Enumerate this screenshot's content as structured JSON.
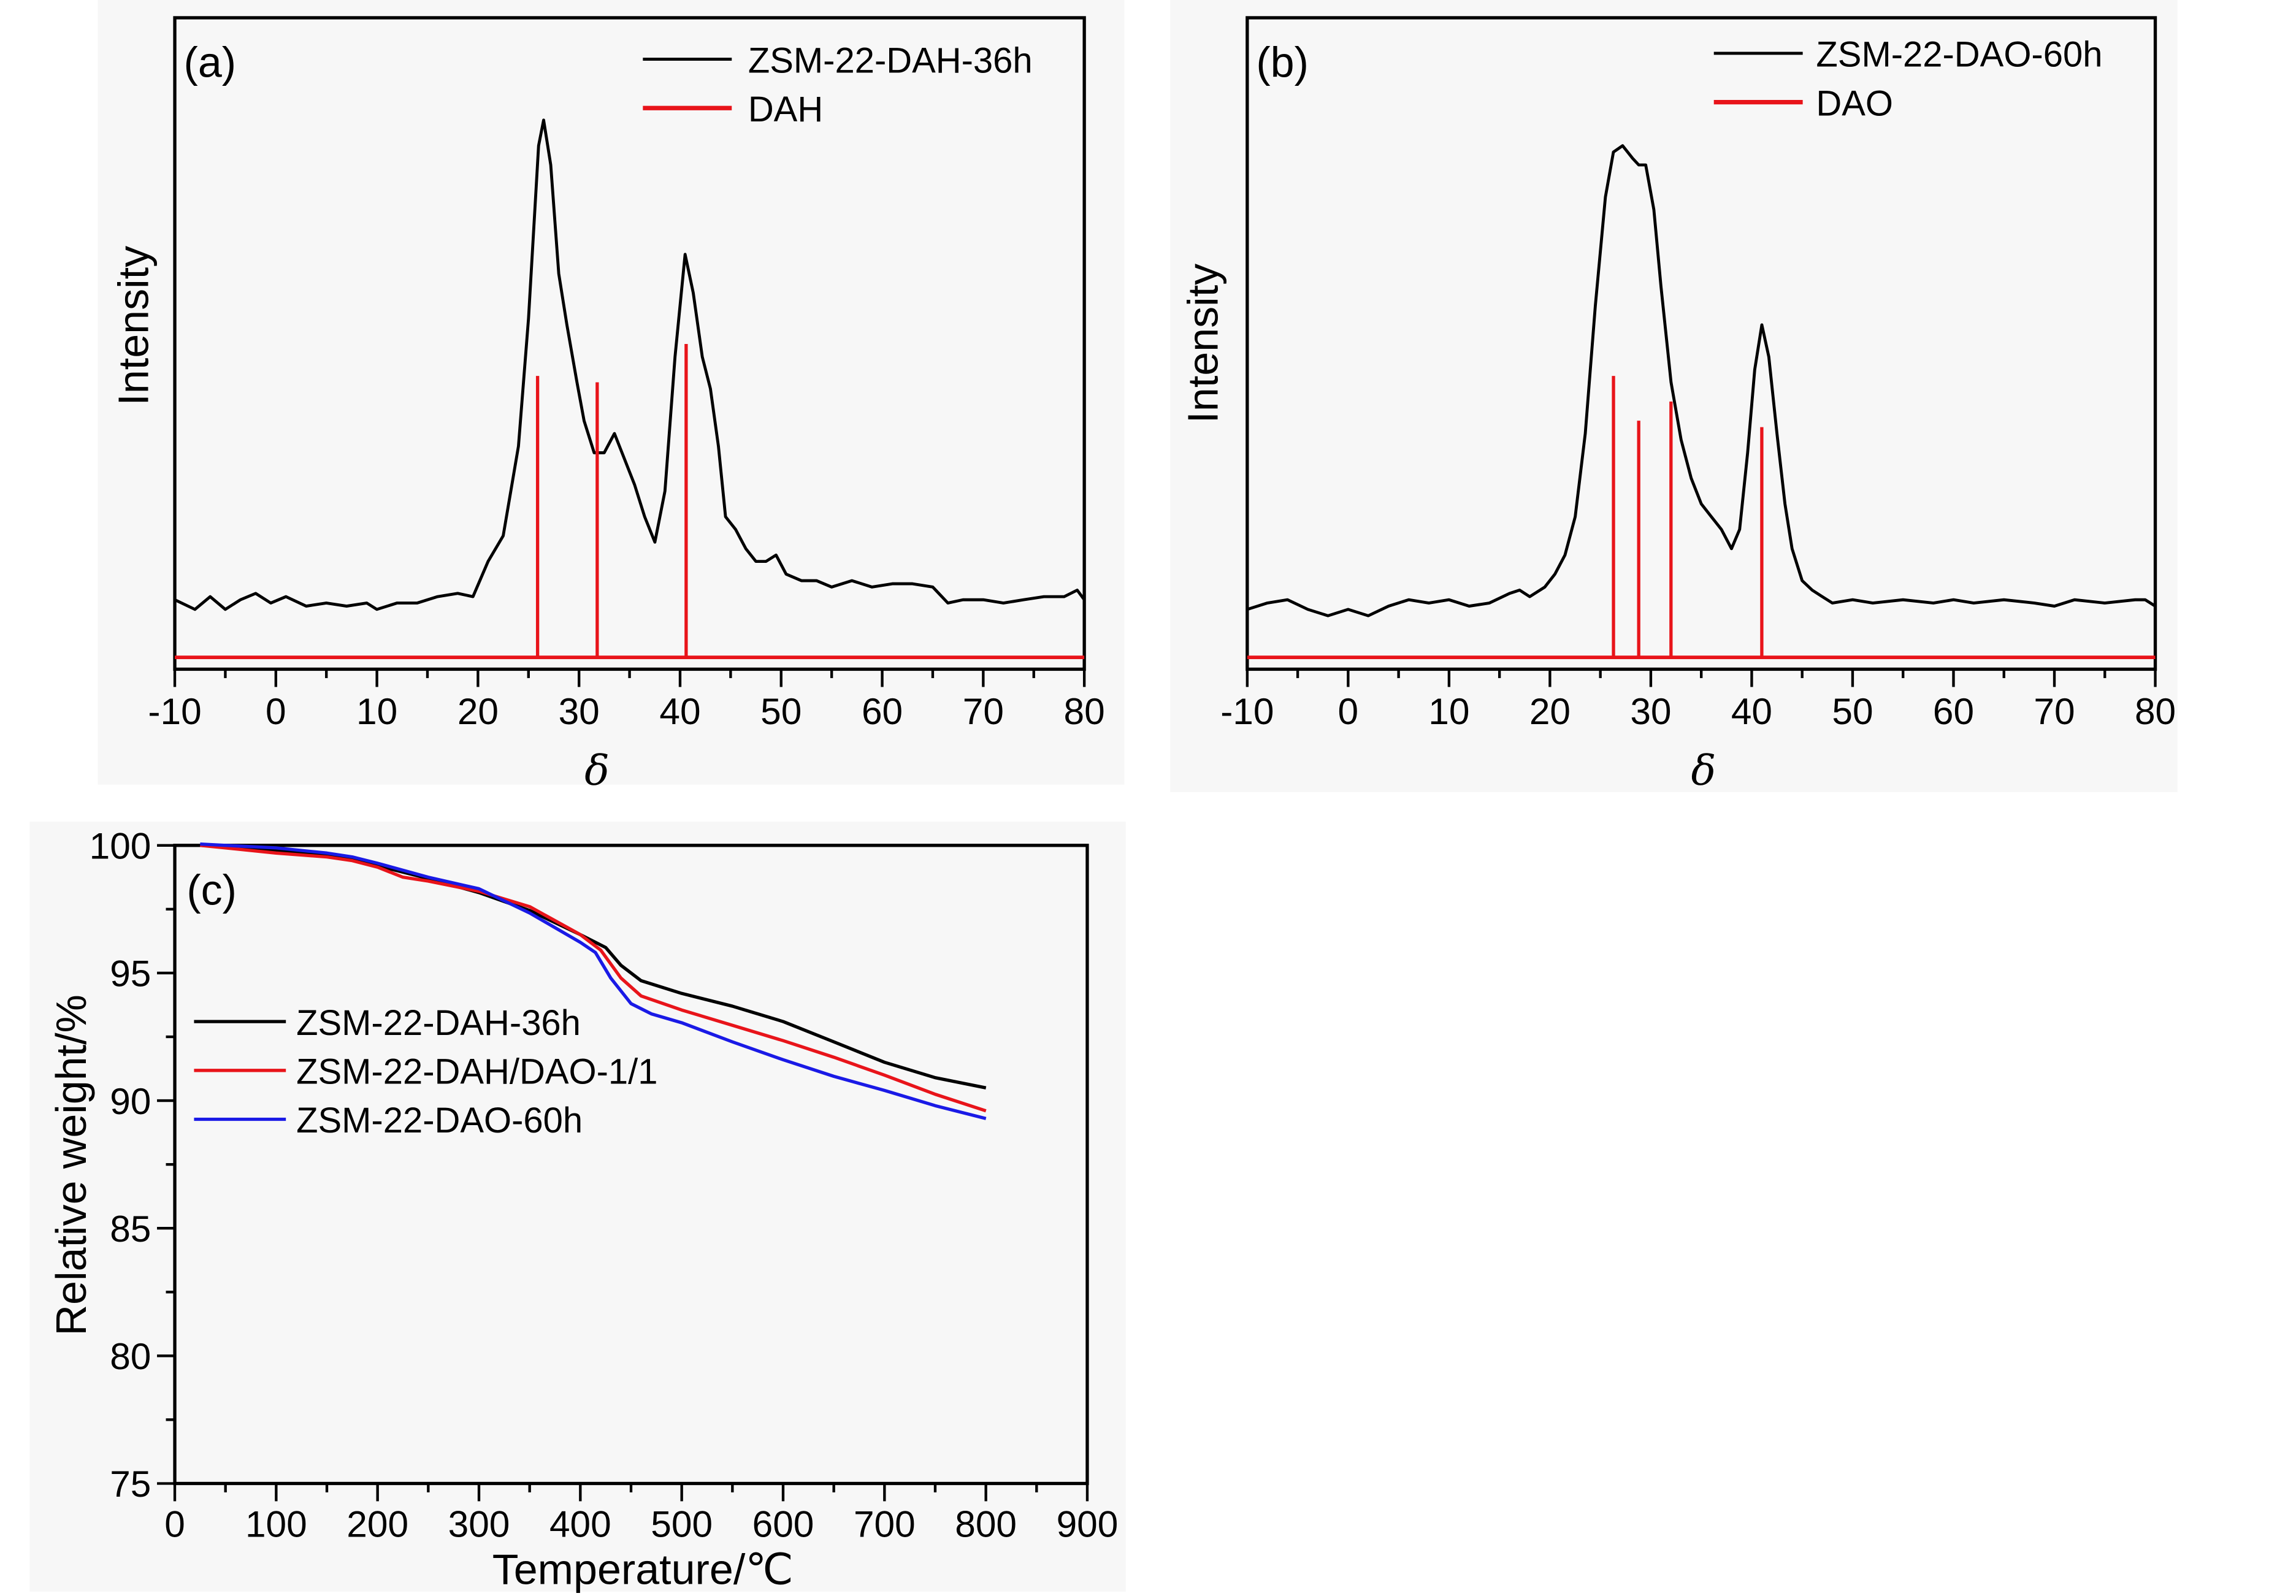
{
  "figure": {
    "panels": [
      "(a)",
      "(b)",
      "(c)"
    ]
  },
  "chart_data": [
    {
      "id": "a",
      "type": "line",
      "panel_label": "(a)",
      "title": "",
      "xlabel": "δ",
      "ylabel": "Intensity",
      "xlim": [
        -10,
        80
      ],
      "ylim": [
        0,
        1
      ],
      "y_units": "normalized intensity (a.u.), no tick labels",
      "xticks": [
        -10,
        0,
        10,
        20,
        30,
        40,
        50,
        60,
        70,
        80
      ],
      "xticks_labels": [
        "-10",
        "0",
        "10",
        "20",
        "30",
        "40",
        "50",
        "60",
        "70",
        "80"
      ],
      "legend_position": "top-right",
      "grid": false,
      "series": [
        {
          "name": "ZSM-22-DAH-36h",
          "color": "#000000",
          "style": "line",
          "x": [
            -10,
            -8,
            -6.5,
            -5,
            -3.5,
            -2,
            -0.5,
            1,
            3,
            5,
            7,
            9,
            10,
            12,
            14,
            16,
            18,
            19.5,
            21,
            22.5,
            24,
            25,
            26,
            26.5,
            27.2,
            28,
            28.8,
            29.8,
            30.5,
            31.5,
            32.5,
            33.5,
            34.5,
            35.5,
            36.5,
            37.5,
            38.5,
            39.5,
            40.5,
            41.3,
            42.2,
            43,
            43.8,
            44.5,
            45.5,
            46.5,
            47.5,
            48.5,
            49.5,
            50.5,
            52,
            53.5,
            55,
            57,
            59,
            61,
            63,
            65,
            66.5,
            68,
            70,
            72,
            74,
            76,
            78,
            79.3,
            80
          ],
          "y": [
            0.09,
            0.075,
            0.095,
            0.075,
            0.09,
            0.1,
            0.085,
            0.095,
            0.08,
            0.085,
            0.08,
            0.085,
            0.075,
            0.085,
            0.085,
            0.095,
            0.1,
            0.095,
            0.15,
            0.19,
            0.33,
            0.53,
            0.8,
            0.84,
            0.77,
            0.6,
            0.52,
            0.43,
            0.37,
            0.32,
            0.32,
            0.35,
            0.31,
            0.27,
            0.22,
            0.18,
            0.26,
            0.47,
            0.63,
            0.57,
            0.47,
            0.42,
            0.33,
            0.22,
            0.2,
            0.17,
            0.15,
            0.15,
            0.16,
            0.13,
            0.12,
            0.12,
            0.11,
            0.12,
            0.11,
            0.115,
            0.115,
            0.11,
            0.085,
            0.09,
            0.09,
            0.085,
            0.09,
            0.095,
            0.095,
            0.105,
            0.09
          ]
        },
        {
          "name": "DAH",
          "color": "#e8141a",
          "style": "sticks",
          "baseline": 0.0,
          "x": [
            25.9,
            31.8,
            40.6
          ],
          "y": [
            0.44,
            0.43,
            0.49
          ]
        }
      ]
    },
    {
      "id": "b",
      "type": "line",
      "panel_label": "(b)",
      "title": "",
      "xlabel": "δ",
      "ylabel": "Intensity",
      "xlim": [
        -10,
        80
      ],
      "ylim": [
        0,
        1
      ],
      "y_units": "normalized intensity (a.u.), no tick labels",
      "xticks": [
        -10,
        0,
        10,
        20,
        30,
        40,
        50,
        60,
        70,
        80
      ],
      "xticks_labels": [
        "-10",
        "0",
        "10",
        "20",
        "30",
        "40",
        "50",
        "60",
        "70",
        "80"
      ],
      "legend_position": "top-right",
      "grid": false,
      "series": [
        {
          "name": "ZSM-22-DAO-60h",
          "color": "#000000",
          "style": "line",
          "x": [
            -10,
            -8,
            -6,
            -4,
            -2,
            0,
            2,
            4,
            6,
            8,
            10,
            12,
            14,
            16,
            17,
            18,
            19.5,
            20.5,
            21.5,
            22.5,
            23.5,
            24.5,
            25.5,
            26.3,
            27.2,
            28.2,
            28.8,
            29.5,
            30.3,
            31,
            32,
            33,
            34,
            35,
            36,
            37,
            38,
            38.8,
            39.6,
            40.3,
            41,
            41.7,
            42.5,
            43.3,
            44,
            45,
            46,
            47,
            48,
            50,
            52,
            55,
            58,
            60,
            62,
            65,
            68,
            70,
            72,
            75,
            78,
            79,
            80
          ],
          "y": [
            0.075,
            0.085,
            0.09,
            0.075,
            0.065,
            0.075,
            0.065,
            0.08,
            0.09,
            0.085,
            0.09,
            0.08,
            0.085,
            0.1,
            0.105,
            0.095,
            0.11,
            0.13,
            0.16,
            0.22,
            0.35,
            0.55,
            0.72,
            0.79,
            0.8,
            0.78,
            0.77,
            0.77,
            0.7,
            0.58,
            0.43,
            0.34,
            0.28,
            0.24,
            0.22,
            0.2,
            0.17,
            0.2,
            0.32,
            0.45,
            0.52,
            0.47,
            0.35,
            0.24,
            0.17,
            0.12,
            0.105,
            0.095,
            0.085,
            0.09,
            0.085,
            0.09,
            0.085,
            0.09,
            0.085,
            0.09,
            0.085,
            0.08,
            0.09,
            0.085,
            0.09,
            0.09,
            0.08
          ]
        },
        {
          "name": "DAO",
          "color": "#e8141a",
          "style": "sticks",
          "baseline": 0.0,
          "x": [
            26.3,
            28.8,
            32.0,
            41.0
          ],
          "y": [
            0.44,
            0.37,
            0.4,
            0.36
          ]
        }
      ]
    },
    {
      "id": "c",
      "type": "line",
      "panel_label": "(c)",
      "title": "",
      "xlabel": "Temperature/℃",
      "ylabel": "Relative weight/%",
      "xlim": [
        0,
        900
      ],
      "ylim": [
        75,
        100
      ],
      "xticks": [
        0,
        100,
        200,
        300,
        400,
        500,
        600,
        700,
        800,
        900
      ],
      "xticks_labels": [
        "0",
        "100",
        "200",
        "300",
        "400",
        "500",
        "600",
        "700",
        "800",
        "900"
      ],
      "yticks": [
        75,
        80,
        85,
        90,
        95,
        100
      ],
      "yticks_labels": [
        "75",
        "80",
        "85",
        "90",
        "95",
        "100"
      ],
      "legend_position": "center-left",
      "grid": false,
      "series": [
        {
          "name": "ZSM-22-DAH-36h",
          "color": "#000000",
          "x": [
            25,
            50,
            100,
            150,
            175,
            200,
            250,
            300,
            350,
            400,
            425,
            440,
            460,
            500,
            550,
            600,
            650,
            700,
            750,
            800
          ],
          "y": [
            100.0,
            99.95,
            99.8,
            99.6,
            99.5,
            99.2,
            98.7,
            98.15,
            97.45,
            96.5,
            96.0,
            95.3,
            94.7,
            94.2,
            93.7,
            93.1,
            92.3,
            91.5,
            90.9,
            90.5
          ]
        },
        {
          "name": "ZSM-22-DAH/DAO-1/1",
          "color": "#e8141a",
          "x": [
            25,
            50,
            100,
            150,
            175,
            200,
            225,
            250,
            300,
            350,
            400,
            420,
            440,
            460,
            500,
            550,
            600,
            650,
            700,
            750,
            800
          ],
          "y": [
            100.0,
            99.9,
            99.7,
            99.55,
            99.4,
            99.15,
            98.75,
            98.6,
            98.2,
            97.6,
            96.5,
            95.9,
            94.8,
            94.1,
            93.55,
            92.95,
            92.35,
            91.7,
            91.0,
            90.25,
            89.6
          ]
        },
        {
          "name": "ZSM-22-DAO-60h",
          "color": "#1a1ae6",
          "x": [
            25,
            50,
            100,
            150,
            175,
            200,
            250,
            300,
            350,
            400,
            415,
            430,
            450,
            470,
            500,
            550,
            600,
            650,
            700,
            750,
            800
          ],
          "y": [
            100.05,
            100.0,
            99.9,
            99.7,
            99.55,
            99.3,
            98.75,
            98.3,
            97.35,
            96.2,
            95.8,
            94.8,
            93.8,
            93.4,
            93.05,
            92.3,
            91.6,
            90.95,
            90.4,
            89.8,
            89.3
          ]
        }
      ]
    }
  ]
}
